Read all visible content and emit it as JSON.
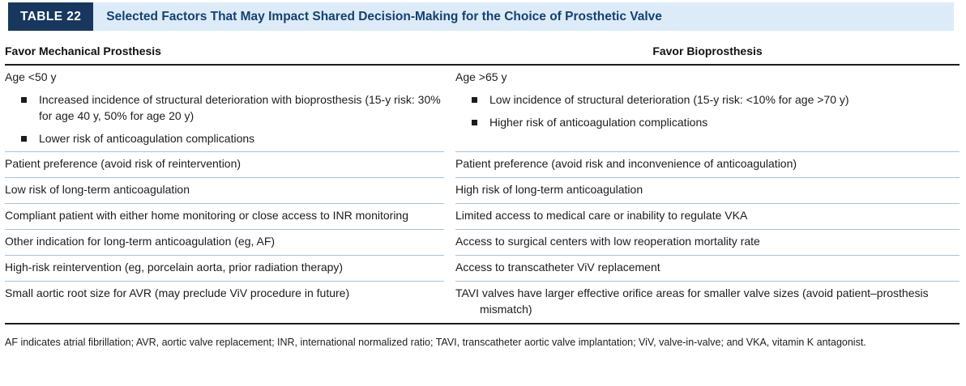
{
  "colors": {
    "chip_background": "#17375e",
    "band_background": "#dcebf7",
    "title_text": "#16406d",
    "row_divider": "#a9c2d6",
    "heavy_rule": "#1c1c1c"
  },
  "header": {
    "chip": "TABLE 22",
    "title": "Selected Factors That May Impact Shared Decision-Making for the Choice of Prosthetic Valve"
  },
  "columns": {
    "left": "Favor Mechanical Prosthesis",
    "right": "Favor Bioprosthesis"
  },
  "rows": [
    {
      "left": {
        "lead": "Age <50 y",
        "bullets": [
          "Increased incidence of structural deterioration with bioprosthesis (15-y risk: 30% for age 40 y, 50% for age 20 y)",
          "Lower risk of anticoagulation complications"
        ]
      },
      "right": {
        "lead": "Age >65 y",
        "bullets": [
          "Low incidence of structural deterioration (15-y risk: <10% for age >70 y)",
          "Higher risk of anticoagulation complications"
        ]
      }
    },
    {
      "left": {
        "text": "Patient preference (avoid risk of reintervention)"
      },
      "right": {
        "text": "Patient preference (avoid risk and inconvenience of anticoagulation)"
      }
    },
    {
      "left": {
        "text": "Low risk of long-term anticoagulation"
      },
      "right": {
        "text": "High risk of long-term anticoagulation"
      }
    },
    {
      "left": {
        "text": "Compliant patient with either home monitoring or close access to INR monitoring"
      },
      "right": {
        "text": "Limited access to medical care or inability to regulate VKA"
      }
    },
    {
      "left": {
        "text": "Other indication for long-term anticoagulation (eg, AF)"
      },
      "right": {
        "text": "Access to surgical centers with low reoperation mortality rate"
      }
    },
    {
      "left": {
        "text": "High-risk reintervention (eg, porcelain aorta, prior radiation therapy)"
      },
      "right": {
        "text": "Access to transcatheter ViV replacement"
      }
    },
    {
      "left": {
        "text": "Small aortic root size for AVR (may preclude ViV procedure in future)"
      },
      "right": {
        "text": "TAVI valves have larger effective orifice areas for smaller valve sizes (avoid patient–prosthesis mismatch)"
      }
    }
  ],
  "footnote": "AF indicates atrial fibrillation; AVR, aortic valve replacement; INR, international normalized ratio; TAVI, transcatheter aortic valve implantation; ViV, valve-in-valve; and VKA, vitamin K antagonist."
}
